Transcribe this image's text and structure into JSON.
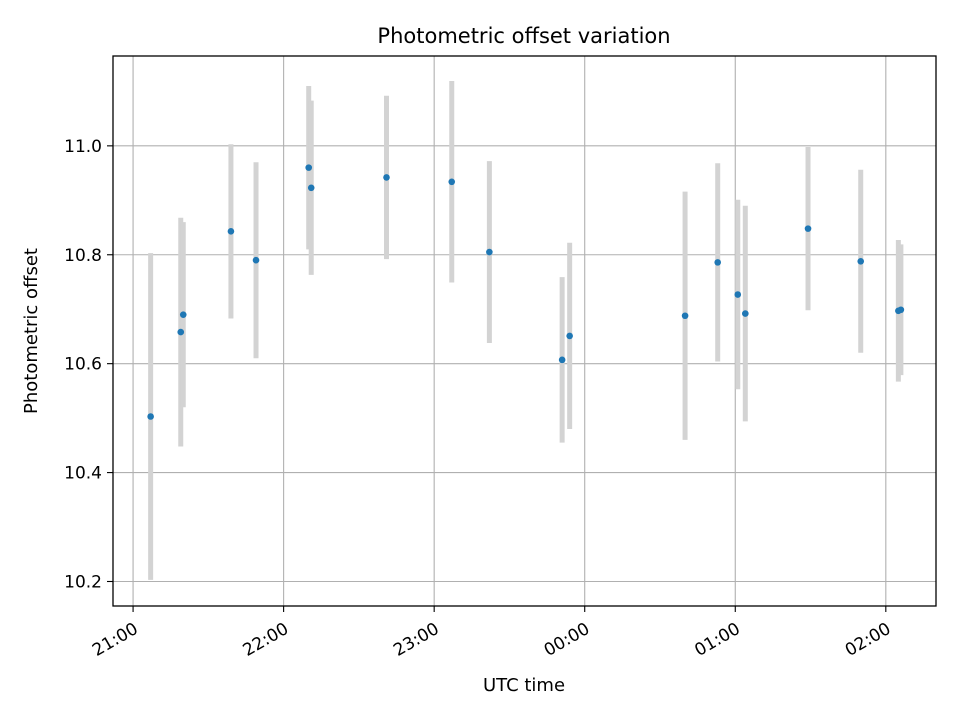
{
  "chart_data": {
    "type": "scatter",
    "title": "Photometric offset variation",
    "xlabel": "UTC time",
    "ylabel": "Photometric offset",
    "x_axis_kind": "time",
    "xlim": [
      "20:52",
      "02:20"
    ],
    "ylim": [
      10.155,
      11.165
    ],
    "x_ticks": [
      "21:00",
      "22:00",
      "23:00",
      "00:00",
      "01:00",
      "02:00"
    ],
    "y_ticks": [
      10.2,
      10.4,
      10.6,
      10.8,
      11.0
    ],
    "y_tick_labels": [
      "10.2",
      "10.4",
      "10.6",
      "10.8",
      "11.0"
    ],
    "grid": true,
    "marker_color": "#1f77b4",
    "errorbar_color": "#d3d3d3",
    "series": [
      {
        "points": [
          {
            "time": "21:07",
            "y": 10.503,
            "err": 0.3
          },
          {
            "time": "21:19",
            "y": 10.658,
            "err": 0.21
          },
          {
            "time": "21:20",
            "y": 10.69,
            "err": 0.17
          },
          {
            "time": "21:39",
            "y": 10.843,
            "err": 0.16
          },
          {
            "time": "21:49",
            "y": 10.79,
            "err": 0.18
          },
          {
            "time": "22:10",
            "y": 10.96,
            "err": 0.15
          },
          {
            "time": "22:11",
            "y": 10.923,
            "err": 0.16
          },
          {
            "time": "22:41",
            "y": 10.942,
            "err": 0.15
          },
          {
            "time": "23:07",
            "y": 10.934,
            "err": 0.185
          },
          {
            "time": "23:22",
            "y": 10.805,
            "err": 0.167
          },
          {
            "time": "23:51",
            "y": 10.607,
            "err": 0.152
          },
          {
            "time": "23:54",
            "y": 10.651,
            "err": 0.171
          },
          {
            "time": "00:40",
            "y": 10.688,
            "err": 0.228
          },
          {
            "time": "00:53",
            "y": 10.786,
            "err": 0.182
          },
          {
            "time": "01:01",
            "y": 10.727,
            "err": 0.174
          },
          {
            "time": "01:04",
            "y": 10.692,
            "err": 0.198
          },
          {
            "time": "01:29",
            "y": 10.848,
            "err": 0.15
          },
          {
            "time": "01:50",
            "y": 10.788,
            "err": 0.168
          },
          {
            "time": "02:05",
            "y": 10.697,
            "err": 0.13
          },
          {
            "time": "02:06",
            "y": 10.699,
            "err": 0.12
          }
        ]
      }
    ]
  }
}
